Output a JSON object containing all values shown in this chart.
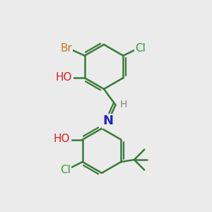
{
  "bg_color": "#ebebeb",
  "bond_color": "#3a7a3a",
  "bond_width": 1.8,
  "atom_colors": {
    "Br": "#cc7722",
    "Cl": "#3a9a3a",
    "O": "#dd2222",
    "N": "#2222cc",
    "H": "#888888",
    "C": "#3a7a3a"
  },
  "font_size": 11
}
